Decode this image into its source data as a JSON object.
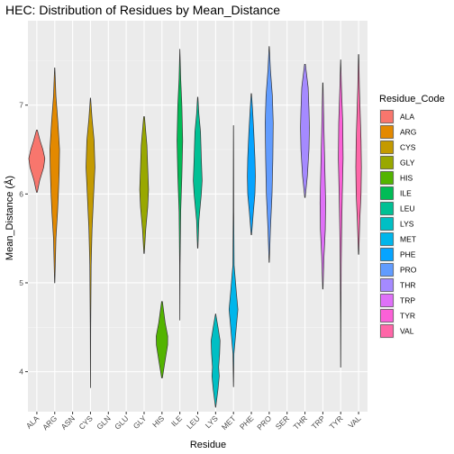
{
  "chart_data": {
    "type": "violin",
    "title": "HEC: Distribution of Residues by Mean_Distance",
    "xlabel": "Residue",
    "ylabel": "Mean_Distance (Å)",
    "ylim": [
      3.55,
      7.95
    ],
    "yticks": [
      4,
      5,
      6,
      7
    ],
    "grid": true,
    "legend": {
      "title": "Residue_Code",
      "position": "right"
    },
    "categories": [
      "ALA",
      "ARG",
      "ASN",
      "CYS",
      "GLN",
      "GLU",
      "GLY",
      "HIS",
      "ILE",
      "LEU",
      "LYS",
      "MET",
      "PHE",
      "PRO",
      "SER",
      "THR",
      "TRP",
      "TYR",
      "VAL"
    ],
    "series": [
      {
        "name": "ALA",
        "color": "#F8766D",
        "min": 6.02,
        "max": 6.72,
        "profile": [
          [
            6.02,
            0.05
          ],
          [
            6.15,
            0.35
          ],
          [
            6.3,
            0.85
          ],
          [
            6.4,
            1.0
          ],
          [
            6.5,
            0.75
          ],
          [
            6.6,
            0.4
          ],
          [
            6.72,
            0.05
          ]
        ]
      },
      {
        "name": "ARG",
        "color": "#E7851E",
        "min": 5.0,
        "max": 7.42,
        "profile": [
          [
            5.0,
            0.02
          ],
          [
            5.5,
            0.15
          ],
          [
            5.8,
            0.35
          ],
          [
            6.0,
            0.45
          ],
          [
            6.25,
            0.55
          ],
          [
            6.5,
            0.6
          ],
          [
            6.8,
            0.4
          ],
          [
            7.1,
            0.15
          ],
          [
            7.42,
            0.02
          ]
        ]
      },
      {
        "name": "ASN",
        "color": "#D09400",
        "min": null,
        "max": null,
        "profile": []
      },
      {
        "name": "CYS",
        "color": "#B2A100",
        "min": 3.82,
        "max": 7.08,
        "profile": [
          [
            3.82,
            0.01
          ],
          [
            4.5,
            0.03
          ],
          [
            5.2,
            0.08
          ],
          [
            5.6,
            0.2
          ],
          [
            6.0,
            0.4
          ],
          [
            6.3,
            0.55
          ],
          [
            6.6,
            0.45
          ],
          [
            6.85,
            0.2
          ],
          [
            7.08,
            0.02
          ]
        ]
      },
      {
        "name": "GLN",
        "color": "#89AC00",
        "min": null,
        "max": null,
        "profile": []
      },
      {
        "name": "GLU",
        "color": "#45B500",
        "min": null,
        "max": null,
        "profile": []
      },
      {
        "name": "GLY",
        "color": "#00BC51",
        "min": 5.33,
        "max": 6.87,
        "profile": [
          [
            5.33,
            0.03
          ],
          [
            5.6,
            0.2
          ],
          [
            5.85,
            0.45
          ],
          [
            6.05,
            0.55
          ],
          [
            6.3,
            0.45
          ],
          [
            6.55,
            0.35
          ],
          [
            6.87,
            0.05
          ]
        ]
      },
      {
        "name": "HIS",
        "color": "#00C087",
        "min": 3.93,
        "max": 4.79,
        "profile": [
          [
            3.93,
            0.05
          ],
          [
            4.1,
            0.35
          ],
          [
            4.3,
            0.7
          ],
          [
            4.4,
            0.72
          ],
          [
            4.55,
            0.4
          ],
          [
            4.79,
            0.05
          ]
        ]
      },
      {
        "name": "ILE",
        "color": "#00C0B2",
        "min": 4.58,
        "max": 7.63,
        "profile": [
          [
            4.58,
            0.01
          ],
          [
            5.2,
            0.03
          ],
          [
            5.8,
            0.1
          ],
          [
            6.2,
            0.25
          ],
          [
            6.6,
            0.35
          ],
          [
            7.0,
            0.25
          ],
          [
            7.3,
            0.1
          ],
          [
            7.63,
            0.01
          ]
        ]
      },
      {
        "name": "LEU",
        "color": "#00BCD6",
        "min": 5.39,
        "max": 7.09,
        "profile": [
          [
            5.39,
            0.02
          ],
          [
            5.7,
            0.15
          ],
          [
            6.0,
            0.45
          ],
          [
            6.15,
            0.55
          ],
          [
            6.4,
            0.45
          ],
          [
            6.7,
            0.35
          ],
          [
            6.9,
            0.15
          ],
          [
            7.09,
            0.02
          ]
        ]
      },
      {
        "name": "LYS",
        "color": "#00B3F2",
        "min": 3.6,
        "max": 4.65,
        "profile": [
          [
            3.6,
            0.02
          ],
          [
            3.8,
            0.3
          ],
          [
            3.95,
            0.45
          ],
          [
            4.05,
            0.38
          ],
          [
            4.2,
            0.5
          ],
          [
            4.35,
            0.55
          ],
          [
            4.5,
            0.3
          ],
          [
            4.65,
            0.02
          ]
        ]
      },
      {
        "name": "MET",
        "color": "#29A3FF",
        "min": 3.83,
        "max": 6.77,
        "profile": [
          [
            3.83,
            0.01
          ],
          [
            4.2,
            0.06
          ],
          [
            4.5,
            0.35
          ],
          [
            4.7,
            0.55
          ],
          [
            4.9,
            0.35
          ],
          [
            5.2,
            0.08
          ],
          [
            5.8,
            0.03
          ],
          [
            6.4,
            0.02
          ],
          [
            6.77,
            0.01
          ]
        ]
      },
      {
        "name": "PHE",
        "color": "#9C8DFF",
        "min": 5.54,
        "max": 7.13,
        "profile": [
          [
            5.54,
            0.03
          ],
          [
            5.8,
            0.25
          ],
          [
            6.0,
            0.45
          ],
          [
            6.2,
            0.5
          ],
          [
            6.4,
            0.45
          ],
          [
            6.7,
            0.3
          ],
          [
            6.95,
            0.15
          ],
          [
            7.13,
            0.02
          ]
        ]
      },
      {
        "name": "PRO",
        "color": "#D277FF",
        "min": 5.23,
        "max": 7.66,
        "profile": [
          [
            5.23,
            0.02
          ],
          [
            5.6,
            0.15
          ],
          [
            6.0,
            0.35
          ],
          [
            6.4,
            0.45
          ],
          [
            6.8,
            0.5
          ],
          [
            7.1,
            0.4
          ],
          [
            7.4,
            0.15
          ],
          [
            7.66,
            0.02
          ]
        ]
      },
      {
        "name": "SER",
        "color": "#F265E7",
        "min": null,
        "max": null,
        "profile": []
      },
      {
        "name": "THR",
        "color": "#FF61C7",
        "min": 5.96,
        "max": 7.46,
        "profile": [
          [
            5.96,
            0.03
          ],
          [
            6.2,
            0.3
          ],
          [
            6.5,
            0.5
          ],
          [
            6.75,
            0.55
          ],
          [
            6.95,
            0.5
          ],
          [
            7.2,
            0.4
          ],
          [
            7.46,
            0.05
          ]
        ]
      },
      {
        "name": "TRP",
        "color": "#FF62BC",
        "min": 4.93,
        "max": 7.25,
        "profile": [
          [
            4.93,
            0.02
          ],
          [
            5.3,
            0.15
          ],
          [
            5.6,
            0.3
          ],
          [
            5.9,
            0.35
          ],
          [
            6.3,
            0.25
          ],
          [
            6.7,
            0.15
          ],
          [
            7.0,
            0.08
          ],
          [
            7.25,
            0.02
          ]
        ]
      },
      {
        "name": "TYR",
        "color": "#FF6C91",
        "min": 4.05,
        "max": 7.51,
        "profile": [
          [
            4.05,
            0.01
          ],
          [
            4.6,
            0.03
          ],
          [
            5.2,
            0.06
          ],
          [
            5.6,
            0.12
          ],
          [
            6.0,
            0.2
          ],
          [
            6.4,
            0.3
          ],
          [
            6.8,
            0.25
          ],
          [
            7.2,
            0.1
          ],
          [
            7.51,
            0.01
          ]
        ]
      },
      {
        "name": "VAL",
        "color": "#FF6C91",
        "min": 5.32,
        "max": 7.57,
        "profile": [
          [
            5.32,
            0.02
          ],
          [
            5.7,
            0.15
          ],
          [
            6.0,
            0.3
          ],
          [
            6.3,
            0.35
          ],
          [
            6.6,
            0.3
          ],
          [
            6.9,
            0.2
          ],
          [
            7.2,
            0.1
          ],
          [
            7.57,
            0.02
          ]
        ]
      }
    ],
    "legend_entries": [
      {
        "label": "ALA",
        "color": "#F8766D"
      },
      {
        "label": "ARG",
        "color": "#E38900"
      },
      {
        "label": "CYS",
        "color": "#C49A00"
      },
      {
        "label": "GLY",
        "color": "#99A800"
      },
      {
        "label": "HIS",
        "color": "#53B400"
      },
      {
        "label": "ILE",
        "color": "#00BC56"
      },
      {
        "label": "LEU",
        "color": "#00C094"
      },
      {
        "label": "LYS",
        "color": "#00BFC4"
      },
      {
        "label": "MET",
        "color": "#00B6EB"
      },
      {
        "label": "PHE",
        "color": "#06A4FF"
      },
      {
        "label": "PRO",
        "color": "#619CFF"
      },
      {
        "label": "THR",
        "color": "#A58AFF"
      },
      {
        "label": "TRP",
        "color": "#DF70F8"
      },
      {
        "label": "TYR",
        "color": "#FB61D7"
      },
      {
        "label": "VAL",
        "color": "#FF66A8"
      }
    ],
    "violin_colors": {
      "ALA": "#F8766D",
      "ARG": "#E38900",
      "CYS": "#C49A00",
      "GLY": "#99A800",
      "HIS": "#53B400",
      "ILE": "#00BC56",
      "LEU": "#00C094",
      "LYS": "#00BFC4",
      "MET": "#00B6EB",
      "PHE": "#06A4FF",
      "PRO": "#619CFF",
      "THR": "#A58AFF",
      "TRP": "#DF70F8",
      "TYR": "#FB61D7",
      "VAL": "#FF66A8"
    }
  }
}
